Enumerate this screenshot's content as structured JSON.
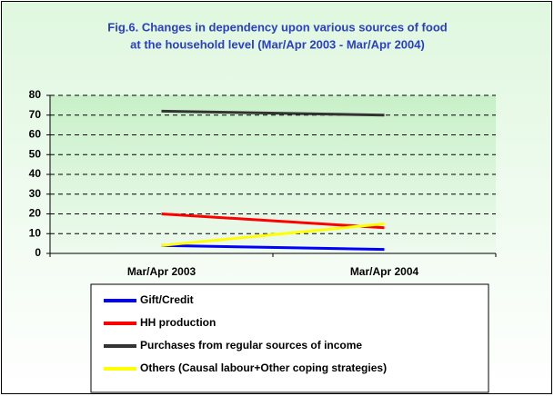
{
  "chart_data": {
    "type": "line",
    "title": [
      "Fig.6. Changes in dependency upon various sources of food",
      "at the household level (Mar/Apr 2003 - Mar/Apr 2004)"
    ],
    "categories": [
      "Mar/Apr 2003",
      "Mar/Apr 2004"
    ],
    "series": [
      {
        "name": "Gift/Credit",
        "color": "#0000ff",
        "values": [
          4,
          2
        ]
      },
      {
        "name": "HH production",
        "color": "#ff0000",
        "values": [
          20,
          13
        ]
      },
      {
        "name": "Purchases from regular sources of income",
        "color": "#333333",
        "values": [
          72,
          70
        ]
      },
      {
        "name": "Others (Causal labour+Other coping strategies)",
        "color": "#ffff00",
        "values": [
          4,
          15
        ]
      }
    ],
    "ylim": [
      0,
      80
    ],
    "yticks": [
      0,
      10,
      20,
      30,
      40,
      50,
      60,
      70,
      80
    ],
    "grid": true
  }
}
